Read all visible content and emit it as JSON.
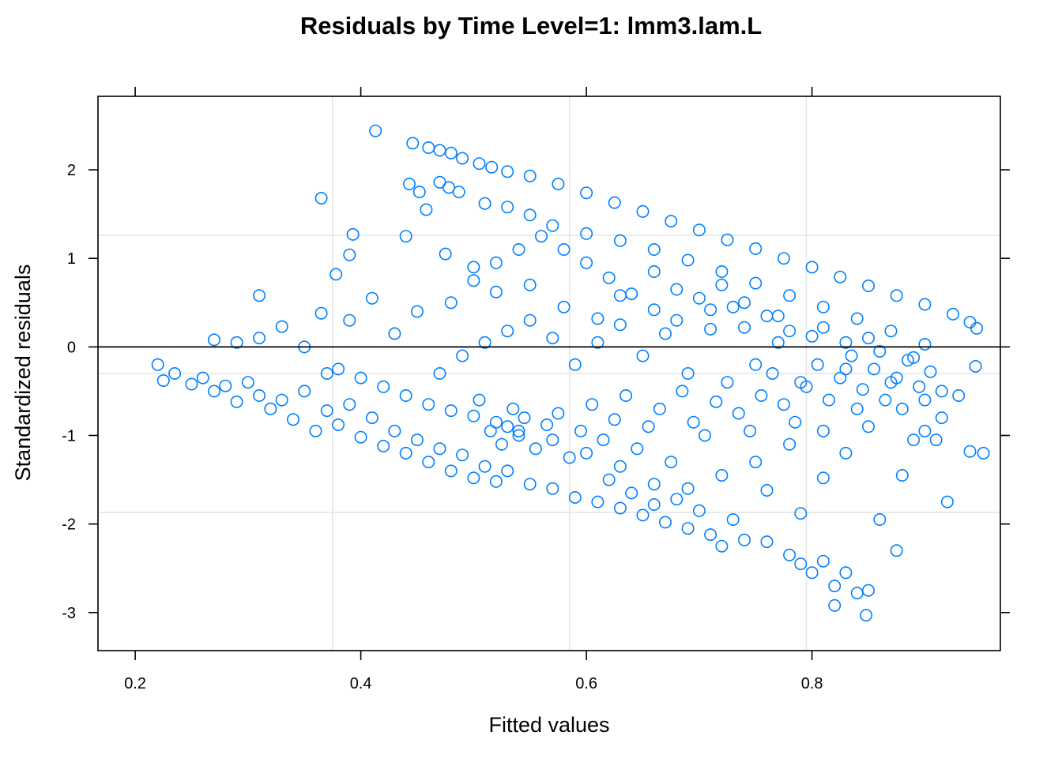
{
  "chart_data": {
    "type": "scatter",
    "title": "Residuals by Time Level=1: lmm3.lam.L",
    "xlabel": "Fitted values",
    "ylabel": "Standardized residuals",
    "xlim": [
      0.167,
      0.967
    ],
    "ylim": [
      -3.43,
      2.83
    ],
    "x_ticks": [
      0.2,
      0.4,
      0.6,
      0.8
    ],
    "x_tick_labels": [
      "0.2",
      "0.4",
      "0.6",
      "0.8"
    ],
    "y_ticks": [
      -3,
      -2,
      -1,
      0,
      1,
      2
    ],
    "y_tick_labels": [
      "-3",
      "-2",
      "-1",
      "0",
      "1",
      "2"
    ],
    "x_grid": [
      0.375,
      0.585,
      0.795
    ],
    "y_grid": [
      -1.87,
      -0.3,
      1.26
    ],
    "reference_line": {
      "y": 0
    },
    "marker": "open-circle",
    "point_color": "#0080ff",
    "series": [
      {
        "points": [
          [
            0.413,
            2.44
          ],
          [
            0.446,
            2.3
          ],
          [
            0.46,
            2.25
          ],
          [
            0.47,
            2.22
          ],
          [
            0.48,
            2.19
          ],
          [
            0.49,
            2.13
          ],
          [
            0.505,
            2.07
          ],
          [
            0.516,
            2.03
          ],
          [
            0.53,
            1.98
          ],
          [
            0.55,
            1.93
          ],
          [
            0.575,
            1.84
          ],
          [
            0.6,
            1.74
          ],
          [
            0.625,
            1.63
          ],
          [
            0.65,
            1.53
          ],
          [
            0.675,
            1.42
          ],
          [
            0.7,
            1.32
          ],
          [
            0.725,
            1.21
          ],
          [
            0.75,
            1.11
          ],
          [
            0.775,
            1.0
          ],
          [
            0.8,
            0.9
          ],
          [
            0.825,
            0.79
          ],
          [
            0.85,
            0.69
          ],
          [
            0.875,
            0.58
          ],
          [
            0.9,
            0.48
          ],
          [
            0.925,
            0.37
          ],
          [
            0.94,
            0.28
          ],
          [
            0.946,
            0.21
          ],
          [
            0.443,
            1.84
          ],
          [
            0.452,
            1.75
          ],
          [
            0.458,
            1.55
          ],
          [
            0.47,
            1.86
          ],
          [
            0.478,
            1.8
          ],
          [
            0.487,
            1.75
          ],
          [
            0.51,
            1.62
          ],
          [
            0.53,
            1.58
          ],
          [
            0.55,
            1.49
          ],
          [
            0.57,
            1.37
          ],
          [
            0.6,
            1.28
          ],
          [
            0.63,
            1.2
          ],
          [
            0.66,
            1.1
          ],
          [
            0.69,
            0.98
          ],
          [
            0.72,
            0.85
          ],
          [
            0.75,
            0.72
          ],
          [
            0.78,
            0.58
          ],
          [
            0.81,
            0.45
          ],
          [
            0.84,
            0.32
          ],
          [
            0.87,
            0.18
          ],
          [
            0.9,
            0.03
          ],
          [
            0.365,
            1.68
          ],
          [
            0.393,
            1.27
          ],
          [
            0.39,
            1.04
          ],
          [
            0.378,
            0.82
          ],
          [
            0.31,
            0.58
          ],
          [
            0.365,
            0.38
          ],
          [
            0.44,
            1.25
          ],
          [
            0.475,
            1.05
          ],
          [
            0.5,
            0.9
          ],
          [
            0.52,
            0.62
          ],
          [
            0.55,
            0.7
          ],
          [
            0.58,
            0.45
          ],
          [
            0.61,
            0.32
          ],
          [
            0.63,
            0.58
          ],
          [
            0.66,
            0.85
          ],
          [
            0.68,
            0.65
          ],
          [
            0.71,
            0.42
          ],
          [
            0.74,
            0.22
          ],
          [
            0.77,
            0.35
          ],
          [
            0.8,
            0.12
          ],
          [
            0.83,
            0.05
          ],
          [
            0.86,
            -0.05
          ],
          [
            0.89,
            -0.12
          ],
          [
            0.22,
            -0.2
          ],
          [
            0.225,
            -0.38
          ],
          [
            0.235,
            -0.3
          ],
          [
            0.25,
            -0.42
          ],
          [
            0.26,
            -0.35
          ],
          [
            0.27,
            -0.5
          ],
          [
            0.28,
            -0.44
          ],
          [
            0.29,
            -0.62
          ],
          [
            0.3,
            -0.4
          ],
          [
            0.31,
            -0.55
          ],
          [
            0.32,
            -0.7
          ],
          [
            0.33,
            -0.6
          ],
          [
            0.34,
            -0.82
          ],
          [
            0.35,
            -0.5
          ],
          [
            0.36,
            -0.95
          ],
          [
            0.37,
            -0.72
          ],
          [
            0.38,
            -0.88
          ],
          [
            0.39,
            -0.65
          ],
          [
            0.4,
            -1.02
          ],
          [
            0.41,
            -0.8
          ],
          [
            0.42,
            -1.12
          ],
          [
            0.43,
            -0.95
          ],
          [
            0.44,
            -1.2
          ],
          [
            0.45,
            -1.05
          ],
          [
            0.46,
            -1.3
          ],
          [
            0.47,
            -1.15
          ],
          [
            0.48,
            -1.4
          ],
          [
            0.49,
            -1.22
          ],
          [
            0.5,
            -1.48
          ],
          [
            0.51,
            -1.35
          ],
          [
            0.52,
            -1.52
          ],
          [
            0.53,
            -1.4
          ],
          [
            0.55,
            -1.55
          ],
          [
            0.57,
            -1.6
          ],
          [
            0.59,
            -1.7
          ],
          [
            0.61,
            -1.75
          ],
          [
            0.63,
            -1.82
          ],
          [
            0.65,
            -1.9
          ],
          [
            0.67,
            -1.98
          ],
          [
            0.69,
            -2.05
          ],
          [
            0.71,
            -2.12
          ],
          [
            0.72,
            -2.25
          ],
          [
            0.74,
            -2.18
          ],
          [
            0.76,
            -2.2
          ],
          [
            0.78,
            -2.35
          ],
          [
            0.79,
            -2.45
          ],
          [
            0.8,
            -2.55
          ],
          [
            0.81,
            -2.42
          ],
          [
            0.82,
            -2.7
          ],
          [
            0.83,
            -2.55
          ],
          [
            0.84,
            -2.78
          ],
          [
            0.848,
            -3.03
          ],
          [
            0.85,
            -2.75
          ],
          [
            0.82,
            -2.92
          ],
          [
            0.86,
            -1.95
          ],
          [
            0.875,
            -2.3
          ],
          [
            0.88,
            -1.45
          ],
          [
            0.89,
            -1.05
          ],
          [
            0.92,
            -1.75
          ],
          [
            0.94,
            -1.18
          ],
          [
            0.952,
            -1.2
          ],
          [
            0.915,
            -0.8
          ],
          [
            0.93,
            -0.55
          ],
          [
            0.945,
            -0.22
          ],
          [
            0.9,
            -0.6
          ],
          [
            0.87,
            -0.4
          ],
          [
            0.84,
            -0.7
          ],
          [
            0.81,
            -0.95
          ],
          [
            0.78,
            -1.1
          ],
          [
            0.75,
            -1.3
          ],
          [
            0.72,
            -1.45
          ],
          [
            0.69,
            -1.6
          ],
          [
            0.66,
            -1.55
          ],
          [
            0.63,
            -1.35
          ],
          [
            0.6,
            -1.2
          ],
          [
            0.57,
            -1.05
          ],
          [
            0.54,
            -0.95
          ],
          [
            0.52,
            -0.85
          ],
          [
            0.5,
            -0.78
          ],
          [
            0.48,
            -0.72
          ],
          [
            0.46,
            -0.65
          ],
          [
            0.44,
            -0.55
          ],
          [
            0.42,
            -0.45
          ],
          [
            0.4,
            -0.35
          ],
          [
            0.38,
            -0.25
          ],
          [
            0.53,
            -0.9
          ],
          [
            0.54,
            -1.0
          ],
          [
            0.545,
            -0.8
          ],
          [
            0.535,
            -0.7
          ],
          [
            0.525,
            -1.1
          ],
          [
            0.515,
            -0.95
          ],
          [
            0.505,
            -0.6
          ],
          [
            0.555,
            -1.15
          ],
          [
            0.565,
            -0.88
          ],
          [
            0.575,
            -0.75
          ],
          [
            0.585,
            -1.25
          ],
          [
            0.595,
            -0.95
          ],
          [
            0.605,
            -0.65
          ],
          [
            0.615,
            -1.05
          ],
          [
            0.625,
            -0.82
          ],
          [
            0.635,
            -0.55
          ],
          [
            0.645,
            -1.15
          ],
          [
            0.655,
            -0.9
          ],
          [
            0.665,
            -0.7
          ],
          [
            0.675,
            -1.3
          ],
          [
            0.685,
            -0.5
          ],
          [
            0.695,
            -0.85
          ],
          [
            0.705,
            -1.0
          ],
          [
            0.715,
            -0.62
          ],
          [
            0.725,
            -0.4
          ],
          [
            0.735,
            -0.75
          ],
          [
            0.745,
            -0.95
          ],
          [
            0.755,
            -0.55
          ],
          [
            0.765,
            -0.3
          ],
          [
            0.775,
            -0.65
          ],
          [
            0.785,
            -0.85
          ],
          [
            0.795,
            -0.45
          ],
          [
            0.805,
            -0.2
          ],
          [
            0.815,
            -0.6
          ],
          [
            0.825,
            -0.35
          ],
          [
            0.835,
            -0.1
          ],
          [
            0.845,
            -0.48
          ],
          [
            0.855,
            -0.25
          ],
          [
            0.865,
            -0.6
          ],
          [
            0.875,
            -0.35
          ],
          [
            0.885,
            -0.15
          ],
          [
            0.895,
            -0.45
          ],
          [
            0.905,
            -0.28
          ],
          [
            0.915,
            -0.5
          ],
          [
            0.47,
            -0.3
          ],
          [
            0.49,
            -0.1
          ],
          [
            0.51,
            0.05
          ],
          [
            0.53,
            0.18
          ],
          [
            0.55,
            0.3
          ],
          [
            0.57,
            0.1
          ],
          [
            0.59,
            -0.2
          ],
          [
            0.61,
            0.05
          ],
          [
            0.63,
            0.25
          ],
          [
            0.65,
            -0.1
          ],
          [
            0.67,
            0.15
          ],
          [
            0.69,
            -0.3
          ],
          [
            0.71,
            0.2
          ],
          [
            0.73,
            0.45
          ],
          [
            0.75,
            -0.2
          ],
          [
            0.77,
            0.05
          ],
          [
            0.79,
            -0.4
          ],
          [
            0.81,
            0.22
          ],
          [
            0.83,
            -0.25
          ],
          [
            0.85,
            0.1
          ],
          [
            0.45,
            0.4
          ],
          [
            0.43,
            0.15
          ],
          [
            0.41,
            0.55
          ],
          [
            0.39,
            0.3
          ],
          [
            0.37,
            -0.3
          ],
          [
            0.35,
            0.0
          ],
          [
            0.33,
            0.23
          ],
          [
            0.31,
            0.1
          ],
          [
            0.29,
            0.05
          ],
          [
            0.27,
            0.08
          ],
          [
            0.48,
            0.5
          ],
          [
            0.5,
            0.75
          ],
          [
            0.52,
            0.95
          ],
          [
            0.54,
            1.1
          ],
          [
            0.56,
            1.25
          ],
          [
            0.58,
            1.1
          ],
          [
            0.6,
            0.95
          ],
          [
            0.62,
            0.78
          ],
          [
            0.64,
            0.6
          ],
          [
            0.66,
            0.42
          ],
          [
            0.68,
            0.3
          ],
          [
            0.7,
            0.55
          ],
          [
            0.72,
            0.7
          ],
          [
            0.74,
            0.5
          ],
          [
            0.76,
            0.35
          ],
          [
            0.78,
            0.18
          ],
          [
            0.62,
            -1.5
          ],
          [
            0.64,
            -1.65
          ],
          [
            0.66,
            -1.78
          ],
          [
            0.68,
            -1.72
          ],
          [
            0.7,
            -1.85
          ],
          [
            0.73,
            -1.95
          ],
          [
            0.76,
            -1.62
          ],
          [
            0.79,
            -1.88
          ],
          [
            0.81,
            -1.48
          ],
          [
            0.83,
            -1.2
          ],
          [
            0.85,
            -0.9
          ],
          [
            0.88,
            -0.7
          ],
          [
            0.9,
            -0.95
          ],
          [
            0.91,
            -1.05
          ]
        ]
      }
    ]
  }
}
